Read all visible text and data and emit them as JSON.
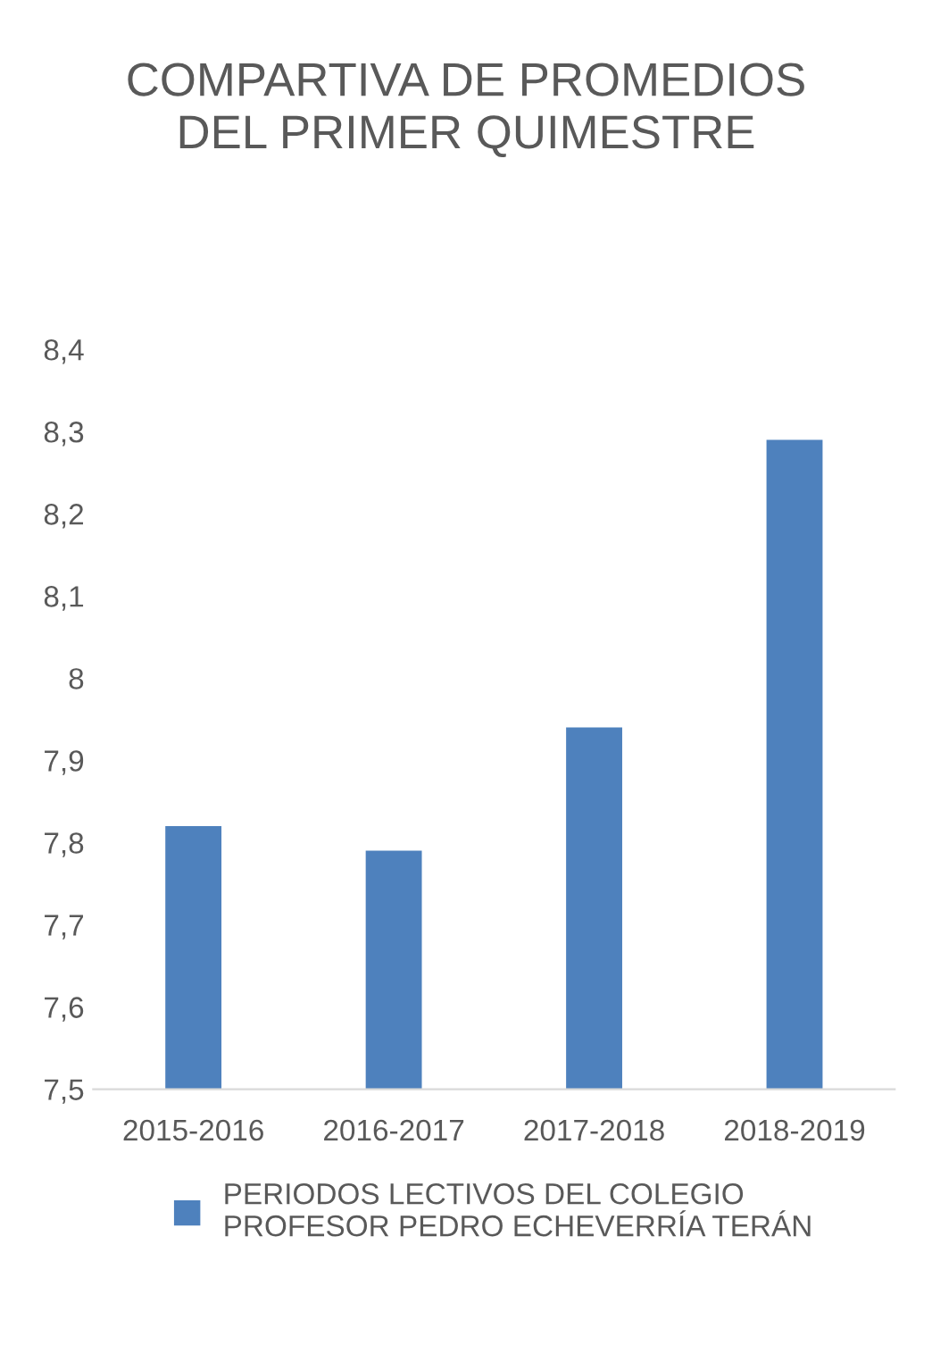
{
  "chart_data": {
    "type": "bar",
    "title": "COMPARTIVA DE PROMEDIOS DEL PRIMER QUIMESTRE",
    "categories": [
      "2015-2016",
      "2016-2017",
      "2017-2018",
      "2018-2019"
    ],
    "series": [
      {
        "name": "PERIODOS LECTIVOS DEL COLEGIO PROFESOR PEDRO ECHEVERRÍA TERÁN",
        "color": "#4e81bd",
        "values": [
          7.82,
          7.79,
          7.94,
          8.29
        ]
      }
    ],
    "ylim": [
      7.5,
      8.4
    ],
    "yticks": [
      {
        "value": 7.5,
        "label": "7,5"
      },
      {
        "value": 7.6,
        "label": "7,6"
      },
      {
        "value": 7.7,
        "label": "7,7"
      },
      {
        "value": 7.8,
        "label": "7,8"
      },
      {
        "value": 7.9,
        "label": "7,9"
      },
      {
        "value": 8,
        "label": "8"
      },
      {
        "value": 8.1,
        "label": "8,1"
      },
      {
        "value": 8.2,
        "label": "8,2"
      },
      {
        "value": 8.3,
        "label": "8,3"
      },
      {
        "value": 8.4,
        "label": "8,4"
      }
    ],
    "grid": false,
    "legend": "bottom"
  }
}
